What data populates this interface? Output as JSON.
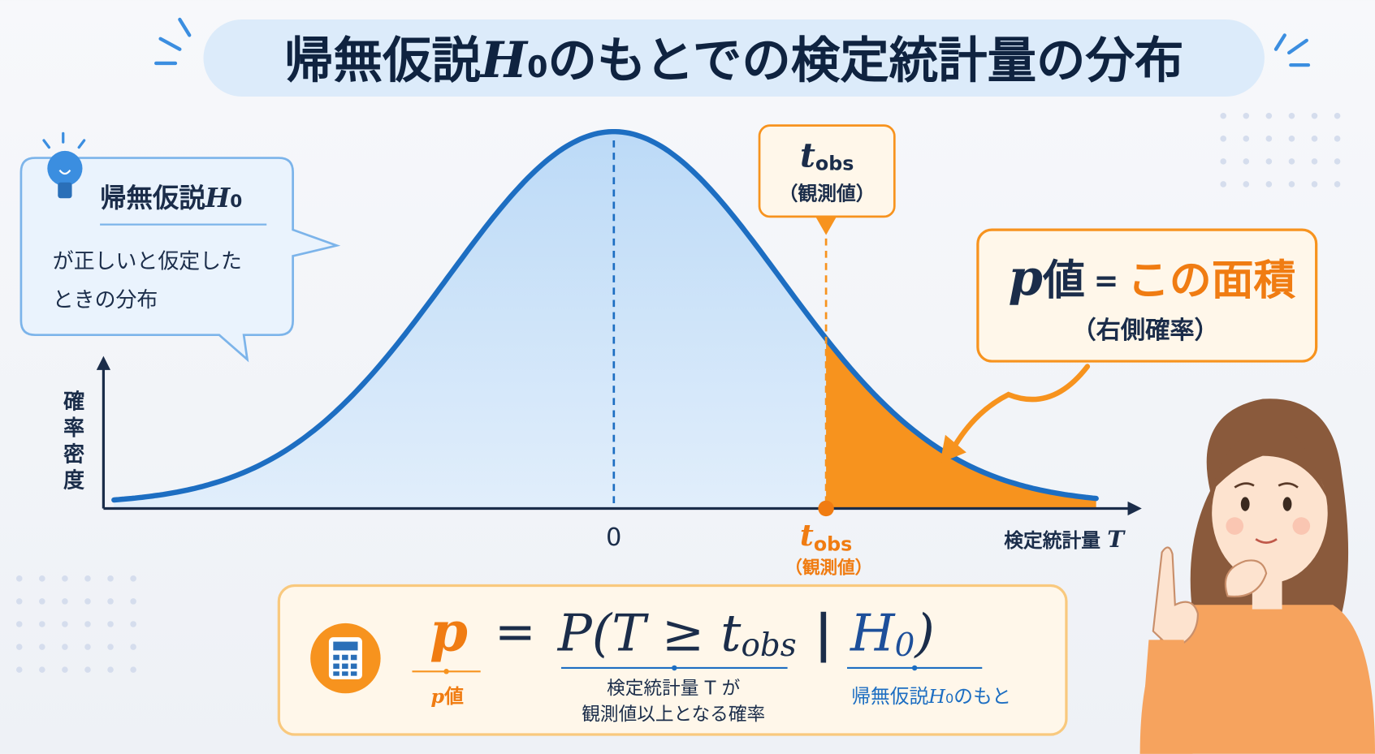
{
  "title": {
    "text1": "帰無仮説",
    "symbol": "H",
    "subscript": "0",
    "text2": "のもとでの検定統計量の分布"
  },
  "callout": {
    "text1": "帰無仮説",
    "symbol": "H",
    "subscript": "0",
    "lines": [
      "が正しいと仮定した",
      "ときの分布"
    ]
  },
  "y_axis_label": "確率密度",
  "x_axis": {
    "zero": "0",
    "t_symbol": "t",
    "t_subscript": "obs",
    "t_note": "（観測値）",
    "label": "検定統計量",
    "label_symbol": "T"
  },
  "marker": {
    "symbol": "t",
    "subscript": "obs",
    "note": "（観測値）"
  },
  "p_box": {
    "symbol": "p",
    "text": "値",
    "equals": "=",
    "highlight": "この面積",
    "note": "（右側確率）"
  },
  "formula": {
    "lhs": "p",
    "equals": "=",
    "prob": "P(T ≥ t",
    "obs": "obs",
    "bar": " | ",
    "H": "H",
    "zero": "0",
    "close": ")"
  },
  "formula_labels": {
    "p_label": {
      "symbol": "p",
      "text": "値"
    },
    "middle": [
      "検定統計量 T が",
      "観測値以上となる確率"
    ],
    "right": {
      "text1": "帰無仮説",
      "symbol": "H",
      "subscript": "0",
      "text2": "のもと"
    }
  }
}
